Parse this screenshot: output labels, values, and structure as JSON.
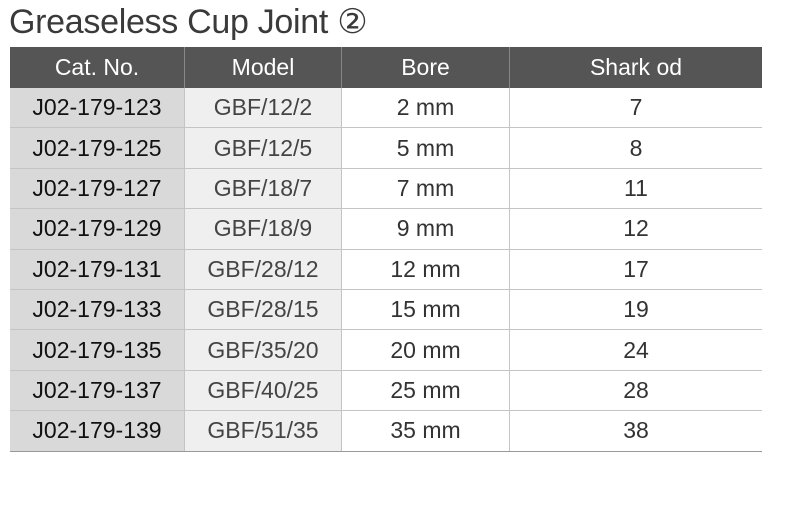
{
  "title": "Greaseless Cup Joint ②",
  "headers": [
    "Cat. No.",
    "Model",
    "Bore",
    "Shark od"
  ],
  "rows": [
    [
      "J02-179-123",
      "GBF/12/2",
      "2 mm",
      "7"
    ],
    [
      "J02-179-125",
      "GBF/12/5",
      "5 mm",
      "8"
    ],
    [
      "J02-179-127",
      "GBF/18/7",
      "7 mm",
      "11"
    ],
    [
      "J02-179-129",
      "GBF/18/9",
      "9 mm",
      "12"
    ],
    [
      "J02-179-131",
      "GBF/28/12",
      "12 mm",
      "17"
    ],
    [
      "J02-179-133",
      "GBF/28/15",
      "15 mm",
      "19"
    ],
    [
      "J02-179-135",
      "GBF/35/20",
      "20 mm",
      "24"
    ],
    [
      "J02-179-137",
      "GBF/40/25",
      "25 mm",
      "28"
    ],
    [
      "J02-179-139",
      "GBF/51/35",
      "35 mm",
      "38"
    ]
  ]
}
